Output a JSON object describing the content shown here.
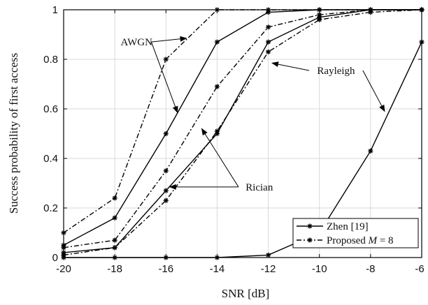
{
  "chart_data": {
    "type": "line",
    "xlabel": "SNR [dB]",
    "ylabel": "Success probability of first access",
    "xlim": [
      -20,
      -6
    ],
    "ylim": [
      0,
      1
    ],
    "x_ticks": [
      "-20",
      "-18",
      "-16",
      "-14",
      "-12",
      "-10",
      "-8",
      "-6"
    ],
    "y_ticks": [
      "0",
      "0.2",
      "0.4",
      "0.6",
      "0.8",
      "1"
    ],
    "grid": true,
    "legend_position": "bottom-right",
    "x": [
      -20,
      -18,
      -16,
      -14,
      -12,
      -10,
      -8,
      -6
    ],
    "series": [
      {
        "group": "Zhen [19]",
        "channel": "AWGN",
        "style": "solid",
        "values": [
          0.05,
          0.16,
          0.5,
          0.87,
          0.99,
          1.0,
          1.0,
          1.0
        ]
      },
      {
        "group": "Zhen [19]",
        "channel": "Rician",
        "style": "solid",
        "values": [
          0.02,
          0.04,
          0.27,
          0.5,
          0.87,
          0.97,
          1.0,
          1.0
        ]
      },
      {
        "group": "Zhen [19]",
        "channel": "Rayleigh",
        "style": "solid",
        "values": [
          0.0,
          0.0,
          0.0,
          0.0,
          0.01,
          0.1,
          0.43,
          0.87
        ]
      },
      {
        "group": "Proposed",
        "channel": "AWGN",
        "style": "dashdot",
        "values": [
          0.1,
          0.24,
          0.8,
          1.0,
          1.0,
          1.0,
          1.0,
          1.0
        ]
      },
      {
        "group": "Proposed",
        "channel": "Rician",
        "style": "dashdot",
        "values": [
          0.04,
          0.07,
          0.35,
          0.69,
          0.93,
          0.98,
          1.0,
          1.0
        ]
      },
      {
        "group": "Proposed",
        "channel": "Rayleigh",
        "style": "dashdot",
        "values": [
          0.01,
          0.04,
          0.23,
          0.51,
          0.83,
          0.96,
          0.99,
          1.0
        ]
      }
    ],
    "annotations": [
      {
        "text": "AWGN",
        "text_at": [
          -17.15,
          0.87
        ],
        "arrows_to": [
          [
            -15.2,
            0.885
          ],
          [
            -15.55,
            0.585
          ]
        ]
      },
      {
        "text": "Rayleigh",
        "text_at": [
          -9.35,
          0.755
        ],
        "arrows_to": [
          [
            -11.85,
            0.785
          ],
          [
            -7.45,
            0.59
          ]
        ]
      },
      {
        "text": "Rician",
        "text_at": [
          -12.35,
          0.285
        ],
        "arrows_to": [
          [
            -15.85,
            0.285
          ],
          [
            -14.6,
            0.52
          ]
        ]
      }
    ],
    "legend": [
      {
        "label": "Zhen [19]",
        "style": "solid"
      },
      {
        "label_prefix": "Proposed ",
        "label_var": "M",
        "label_suffix": " = 8",
        "style": "dashdot"
      }
    ],
    "colors": {
      "line": "#000000",
      "grid": "#d9d9d9",
      "axis": "#000000"
    }
  }
}
